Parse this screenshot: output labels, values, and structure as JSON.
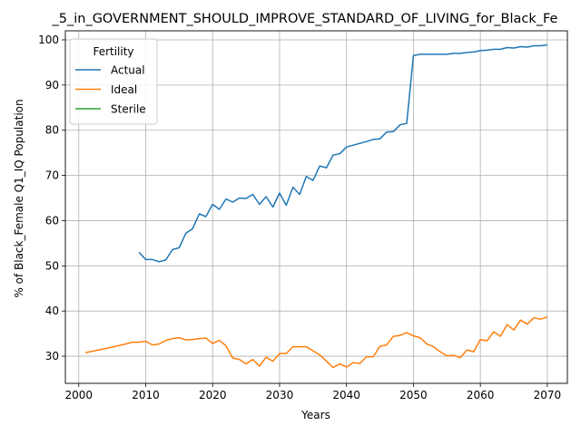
{
  "chart_data": {
    "type": "line",
    "title": "_5_in_GOVERNMENT_SHOULD_IMPROVE_STANDARD_OF_LIVING_for_Black_Fe",
    "xlabel": "Years",
    "ylabel": "% of Black_Female Q1_IQ Population",
    "xlim": [
      1998,
      2073
    ],
    "ylim": [
      24,
      102
    ],
    "x_ticks": [
      2000,
      2010,
      2020,
      2030,
      2040,
      2050,
      2060,
      2070
    ],
    "y_ticks": [
      30,
      40,
      50,
      60,
      70,
      80,
      90,
      100
    ],
    "grid": true,
    "legend": {
      "title": "Fertility",
      "position": "top-left"
    },
    "series": [
      {
        "name": "Actual",
        "color": "#1f77b4",
        "points": [
          [
            2009,
            53.0
          ],
          [
            2010,
            51.4
          ],
          [
            2011,
            51.4
          ],
          [
            2012,
            50.9
          ],
          [
            2013,
            51.3
          ],
          [
            2014,
            53.6
          ],
          [
            2015,
            54.0
          ],
          [
            2016,
            57.2
          ],
          [
            2017,
            58.2
          ],
          [
            2018,
            61.5
          ],
          [
            2019,
            60.9
          ],
          [
            2020,
            63.6
          ],
          [
            2021,
            62.5
          ],
          [
            2022,
            64.8
          ],
          [
            2023,
            64.1
          ],
          [
            2024,
            65.0
          ],
          [
            2025,
            64.9
          ],
          [
            2026,
            65.8
          ],
          [
            2027,
            63.6
          ],
          [
            2028,
            65.3
          ],
          [
            2029,
            63.0
          ],
          [
            2030,
            66.1
          ],
          [
            2031,
            63.4
          ],
          [
            2032,
            67.4
          ],
          [
            2033,
            65.8
          ],
          [
            2034,
            69.8
          ],
          [
            2035,
            68.9
          ],
          [
            2036,
            72.1
          ],
          [
            2037,
            71.7
          ],
          [
            2038,
            74.5
          ],
          [
            2039,
            74.8
          ],
          [
            2040,
            76.3
          ],
          [
            2041,
            76.7
          ],
          [
            2042,
            77.1
          ],
          [
            2043,
            77.5
          ],
          [
            2044,
            78.0
          ],
          [
            2045,
            78.1
          ],
          [
            2046,
            79.6
          ],
          [
            2047,
            79.7
          ],
          [
            2048,
            81.2
          ],
          [
            2049,
            81.5
          ],
          [
            2050,
            96.5
          ],
          [
            2051,
            96.8
          ],
          [
            2052,
            96.8
          ],
          [
            2053,
            96.8
          ],
          [
            2054,
            96.8
          ],
          [
            2055,
            96.8
          ],
          [
            2056,
            97.0
          ],
          [
            2057,
            97.0
          ],
          [
            2058,
            97.2
          ],
          [
            2059,
            97.3
          ],
          [
            2060,
            97.6
          ],
          [
            2061,
            97.7
          ],
          [
            2062,
            97.9
          ],
          [
            2063,
            97.9
          ],
          [
            2064,
            98.3
          ],
          [
            2065,
            98.2
          ],
          [
            2066,
            98.5
          ],
          [
            2067,
            98.4
          ],
          [
            2068,
            98.7
          ],
          [
            2069,
            98.7
          ],
          [
            2070,
            98.9
          ]
        ]
      },
      {
        "name": "Ideal",
        "color": "#ff7f0e",
        "points": [
          [
            2001,
            30.8
          ],
          [
            2004,
            31.7
          ],
          [
            2007,
            32.7
          ],
          [
            2008,
            33.1
          ],
          [
            2009,
            33.1
          ],
          [
            2010,
            33.3
          ],
          [
            2011,
            32.5
          ],
          [
            2012,
            32.7
          ],
          [
            2013,
            33.5
          ],
          [
            2014,
            33.9
          ],
          [
            2015,
            34.1
          ],
          [
            2016,
            33.6
          ],
          [
            2017,
            33.7
          ],
          [
            2018,
            33.9
          ],
          [
            2019,
            34.0
          ],
          [
            2020,
            32.8
          ],
          [
            2021,
            33.5
          ],
          [
            2022,
            32.3
          ],
          [
            2023,
            29.6
          ],
          [
            2024,
            29.3
          ],
          [
            2025,
            28.3
          ],
          [
            2026,
            29.3
          ],
          [
            2027,
            27.8
          ],
          [
            2028,
            29.8
          ],
          [
            2029,
            28.9
          ],
          [
            2030,
            30.6
          ],
          [
            2031,
            30.6
          ],
          [
            2032,
            32.1
          ],
          [
            2033,
            32.1
          ],
          [
            2034,
            32.1
          ],
          [
            2035,
            31.2
          ],
          [
            2036,
            30.3
          ],
          [
            2037,
            28.9
          ],
          [
            2038,
            27.5
          ],
          [
            2039,
            28.3
          ],
          [
            2040,
            27.6
          ],
          [
            2041,
            28.6
          ],
          [
            2042,
            28.4
          ],
          [
            2043,
            29.9
          ],
          [
            2044,
            29.9
          ],
          [
            2045,
            32.2
          ],
          [
            2046,
            32.5
          ],
          [
            2047,
            34.4
          ],
          [
            2048,
            34.6
          ],
          [
            2049,
            35.2
          ],
          [
            2050,
            34.5
          ],
          [
            2051,
            34.1
          ],
          [
            2052,
            32.7
          ],
          [
            2053,
            32.1
          ],
          [
            2054,
            31.0
          ],
          [
            2055,
            30.1
          ],
          [
            2056,
            30.2
          ],
          [
            2057,
            29.7
          ],
          [
            2058,
            31.4
          ],
          [
            2059,
            31.0
          ],
          [
            2060,
            33.7
          ],
          [
            2061,
            33.4
          ],
          [
            2062,
            35.4
          ],
          [
            2063,
            34.4
          ],
          [
            2064,
            37.0
          ],
          [
            2065,
            35.8
          ],
          [
            2066,
            38.0
          ],
          [
            2067,
            37.1
          ],
          [
            2068,
            38.5
          ],
          [
            2069,
            38.2
          ],
          [
            2070,
            38.7
          ]
        ]
      },
      {
        "name": "Sterile",
        "color": "#2ca02c",
        "points": []
      }
    ]
  }
}
